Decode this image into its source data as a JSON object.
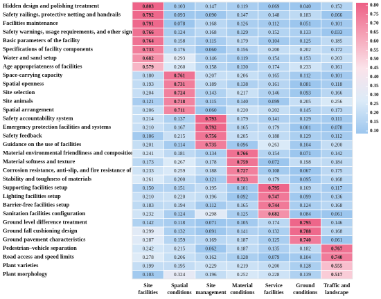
{
  "chart_data": {
    "type": "heatmap",
    "rows": [
      "Hidden design and polishing treatment",
      "Safety railings, protective netting and handrails",
      "Facilities maintenance",
      "Safety warnings, usage requirements, and other signage",
      "Basic parameters of the facility",
      "Specifications of facility components",
      "Water and sand setup",
      "Age appropriateness of facilities",
      "Space-carrying capacity",
      "Spatial openness",
      "Site selection",
      "Site animals",
      "Spatial arrangement",
      "Safety accountability system",
      "Emergency protection facilities and systems",
      "Safety feedback",
      "Guidance on the use of facilities",
      "Material environmental friendliness and composition",
      "Material softness and texture",
      "Corrosion resistance, anti-slip, and fire resistance of materials",
      "Stability and toughness of materials",
      "Supporting facilities setup",
      "Lighting facilities setup",
      "Barrier-free facilities setup",
      "Sanitation facilities configuration",
      "Ground level difference treatment",
      "Ground fall cushioning design",
      "Ground pavement characteristics",
      "Pedestrian–vehicle separation",
      "Road access and speed limits",
      "Plant varieties",
      "Plant morphology"
    ],
    "columns": [
      [
        "Site",
        "facilities"
      ],
      [
        "Spatial",
        "conditions"
      ],
      [
        "Site",
        "management"
      ],
      [
        "Material",
        "conditions"
      ],
      [
        "Service",
        "facilities"
      ],
      [
        "Ground",
        "conditions"
      ],
      [
        "Traffic and",
        "landscape"
      ]
    ],
    "values": [
      [
        0.803,
        0.103,
        0.147,
        0.119,
        0.069,
        0.04,
        0.152
      ],
      [
        0.792,
        0.093,
        0.09,
        0.147,
        0.148,
        0.183,
        0.066
      ],
      [
        0.791,
        0.078,
        0.168,
        0.126,
        0.112,
        0.051,
        0.101
      ],
      [
        0.766,
        0.124,
        0.168,
        0.129,
        0.152,
        0.133,
        0.033
      ],
      [
        0.764,
        0.158,
        0.115,
        0.179,
        0.104,
        0.125,
        0.185
      ],
      [
        0.733,
        0.176,
        0.06,
        0.156,
        0.2,
        0.202,
        0.172
      ],
      [
        0.682,
        0.293,
        0.146,
        0.119,
        0.154,
        0.153,
        0.203
      ],
      [
        0.579,
        0.26,
        0.158,
        0.13,
        0.174,
        0.233,
        0.161
      ],
      [
        0.18,
        0.761,
        0.207,
        0.206,
        0.165,
        0.112,
        0.101
      ],
      [
        0.193,
        0.731,
        0.189,
        0.138,
        0.161,
        0.081,
        0.118
      ],
      [
        0.204,
        0.724,
        0.143,
        0.217,
        0.146,
        0.093,
        0.166
      ],
      [
        0.121,
        0.718,
        0.115,
        0.14,
        0.099,
        0.205,
        0.256
      ],
      [
        0.206,
        0.711,
        0.06,
        0.22,
        0.202,
        0.145,
        0.173
      ],
      [
        0.214,
        0.137,
        0.793,
        0.179,
        0.141,
        0.129,
        0.111
      ],
      [
        0.21,
        0.167,
        0.792,
        0.165,
        0.179,
        0.001,
        0.078
      ],
      [
        0.106,
        0.215,
        0.756,
        0.205,
        0.188,
        0.129,
        0.112
      ],
      [
        0.201,
        0.114,
        0.735,
        0.096,
        0.263,
        0.104,
        0.2
      ],
      [
        0.241,
        0.181,
        0.134,
        0.766,
        0.154,
        0.071,
        0.142
      ],
      [
        0.173,
        0.267,
        0.178,
        0.759,
        0.072,
        0.198,
        0.184
      ],
      [
        0.233,
        0.259,
        0.188,
        0.727,
        0.108,
        0.067,
        0.175
      ],
      [
        0.261,
        0.2,
        0.121,
        0.723,
        0.179,
        0.095,
        0.168
      ],
      [
        0.15,
        0.151,
        0.195,
        0.101,
        0.795,
        0.169,
        0.117
      ],
      [
        0.21,
        0.22,
        0.196,
        0.092,
        0.747,
        0.099,
        0.136
      ],
      [
        0.183,
        0.194,
        0.112,
        0.165,
        0.744,
        0.124,
        0.168
      ],
      [
        0.232,
        0.124,
        0.298,
        0.125,
        0.682,
        0.084,
        0.061
      ],
      [
        0.142,
        0.118,
        0.071,
        0.105,
        0.174,
        0.795,
        0.146
      ],
      [
        0.299,
        0.132,
        0.091,
        0.141,
        0.132,
        0.788,
        0.168
      ],
      [
        0.287,
        0.159,
        0.169,
        0.187,
        0.125,
        0.74,
        0.061
      ],
      [
        0.242,
        0.215,
        0.062,
        0.187,
        0.135,
        0.182,
        0.767
      ],
      [
        0.278,
        0.206,
        0.162,
        0.128,
        0.079,
        0.104,
        0.74
      ],
      [
        0.199,
        0.195,
        0.229,
        0.219,
        0.2,
        0.128,
        0.555
      ],
      [
        0.103,
        0.324,
        0.196,
        0.252,
        0.228,
        0.139,
        0.517
      ]
    ],
    "value_labels": [
      [
        "0.803",
        "0.103",
        "0.147",
        "0.119",
        "0.069",
        "0.040",
        "0.152"
      ],
      [
        "0.792",
        "0.093",
        "0.090",
        "0.147",
        "0.148",
        "0.183",
        "0.066"
      ],
      [
        "0.791",
        "0.078",
        "0.168",
        "0.126",
        "0.112",
        "0.051",
        "0.101"
      ],
      [
        "0.766",
        "0.124",
        "0.168",
        "0.129",
        "0.152",
        "0.133",
        "0.033"
      ],
      [
        "0.764",
        "0.158",
        "0.115",
        "0.179",
        "0.104",
        "0.125",
        "0.185"
      ],
      [
        "0.733",
        "0.176",
        "0.060",
        "0.156",
        "0.200",
        "0.202",
        "0.172"
      ],
      [
        "0.682",
        "0.293",
        "0.146",
        "0.119",
        "0.154",
        "0.153",
        "0.203"
      ],
      [
        "0.579",
        "0.260",
        "0.158",
        "0.130",
        "0.174",
        "0.233",
        "0.161"
      ],
      [
        "0.180",
        "0.761",
        "0.207",
        "0.206",
        "0.165",
        "0.112",
        "0.101"
      ],
      [
        "0.193",
        "0.731",
        "0.189",
        "0.138",
        "0.161",
        "0.081",
        "0.118"
      ],
      [
        "0.204",
        "0.724",
        "0.143",
        "0.217",
        "0.146",
        "0.093",
        "0.166"
      ],
      [
        "0.121",
        "0.718",
        "0.115",
        "0.140",
        "0.099",
        "0.205",
        "0.256"
      ],
      [
        "0.206",
        "0.711",
        "0.060",
        "0.220",
        "0.202",
        "0.145",
        "0.173"
      ],
      [
        "0.214",
        "0.137",
        "0.793",
        "0.179",
        "0.141",
        "0.129",
        "0.111"
      ],
      [
        "0.210",
        "0.167",
        "0.792",
        "0.165",
        "0.179",
        "0.001",
        "0.078"
      ],
      [
        "0.106",
        "0.215",
        "0.756",
        "0.205",
        "0.188",
        "0.129",
        "0.112"
      ],
      [
        "0.201",
        "0.114",
        "0.735",
        "0.096",
        "0.263",
        "0.104",
        "0.200"
      ],
      [
        "0.241",
        "0.181",
        "0.134",
        "0.766",
        "0.154",
        "0.071",
        "0.142"
      ],
      [
        "0.173",
        "0.267",
        "0.178",
        "0.759",
        "0.072",
        "0.198",
        "0.184"
      ],
      [
        "0.233",
        "0.259",
        "0.188",
        "0.727",
        "0.108",
        "0.067",
        "0.175"
      ],
      [
        "0.261",
        "0.200",
        "0.121",
        "0.723",
        "0.179",
        "0.095",
        "0.168"
      ],
      [
        "0.150",
        "0.151",
        "0.195",
        "0.101",
        "0.795",
        "0.169",
        "0.117"
      ],
      [
        "0.210",
        "0.220",
        "0.196",
        "0.092",
        "0.747",
        "0.099",
        "0.136"
      ],
      [
        "0.183",
        "0.194",
        "0.112",
        "0.165",
        "0.744",
        "0.124",
        "0.168"
      ],
      [
        "0.232",
        "0.124",
        "0.298",
        "0.125",
        "0.682",
        "0.084",
        "0.061"
      ],
      [
        "0.142",
        "0.118",
        "0.071",
        "0.105",
        "0.174",
        "0.795",
        "0.146"
      ],
      [
        "0.299",
        "0.132",
        "0.091",
        "0.141",
        "0.132",
        "0.788",
        "0.168"
      ],
      [
        "0.287",
        "0.159",
        "0.169",
        "0.187",
        "0.125",
        "0.740",
        "0.061"
      ],
      [
        "0.242",
        "0.215",
        "0.062",
        "0.187",
        "0.135",
        "0.182",
        "0.767"
      ],
      [
        "0.278",
        "0.206",
        "0.162",
        "0.128",
        "0.079",
        "0.104",
        "0.740"
      ],
      [
        "0.199",
        "0.195",
        "0.229",
        "0.219",
        "0.200",
        "0.128",
        "0.555"
      ],
      [
        "0.103",
        "0.324",
        "0.196",
        "0.252",
        "0.228",
        "0.139",
        "0.517"
      ]
    ],
    "colors": [
      "#9cc6ee",
      "#dcebf8",
      "#fbe3ea",
      "#f5a3b7",
      "#ed5f85"
    ],
    "colorbar_lim": [
      0.085,
      0.815
    ],
    "colorbar_ticks": [
      {
        "value": 0.8,
        "label": "0.80"
      },
      {
        "value": 0.75,
        "label": "0.75"
      },
      {
        "value": 0.7,
        "label": "0.70"
      },
      {
        "value": 0.65,
        "label": "0.65"
      },
      {
        "value": 0.6,
        "label": "0.60"
      },
      {
        "value": 0.55,
        "label": "0.55"
      },
      {
        "value": 0.5,
        "label": "0.50"
      },
      {
        "value": 0.45,
        "label": "0.45"
      },
      {
        "value": 0.4,
        "label": "0.40"
      },
      {
        "value": 0.35,
        "label": "0.35"
      },
      {
        "value": 0.3,
        "label": "0.30"
      },
      {
        "value": 0.25,
        "label": "0.25"
      },
      {
        "value": 0.2,
        "label": "0.20"
      },
      {
        "value": 0.15,
        "label": "0.15"
      },
      {
        "value": 0.1,
        "label": "0.10"
      }
    ]
  }
}
